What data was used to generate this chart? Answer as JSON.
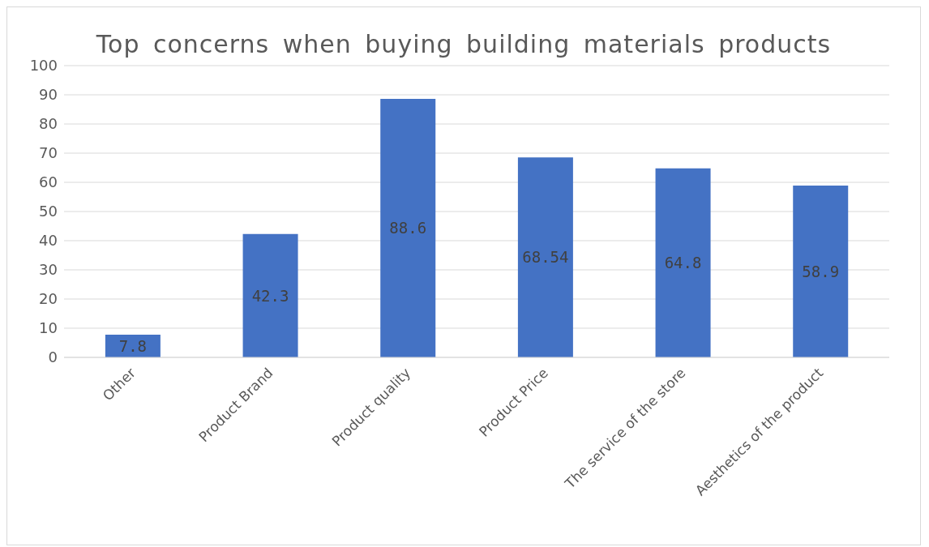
{
  "chart_data": {
    "type": "bar",
    "title": "Top concerns when buying building materials products",
    "categories": [
      "Other",
      "Product Brand",
      "Product quality",
      "Product Price",
      "The service of the store",
      "Aesthetics of the product"
    ],
    "values": [
      7.8,
      42.3,
      88.6,
      68.54,
      64.8,
      58.9
    ],
    "color": "#4472c4",
    "ylim": [
      0,
      100
    ],
    "yticks": [
      0,
      10,
      20,
      30,
      40,
      50,
      60,
      70,
      80,
      90,
      100
    ],
    "grid": "y",
    "data_labels": true
  }
}
